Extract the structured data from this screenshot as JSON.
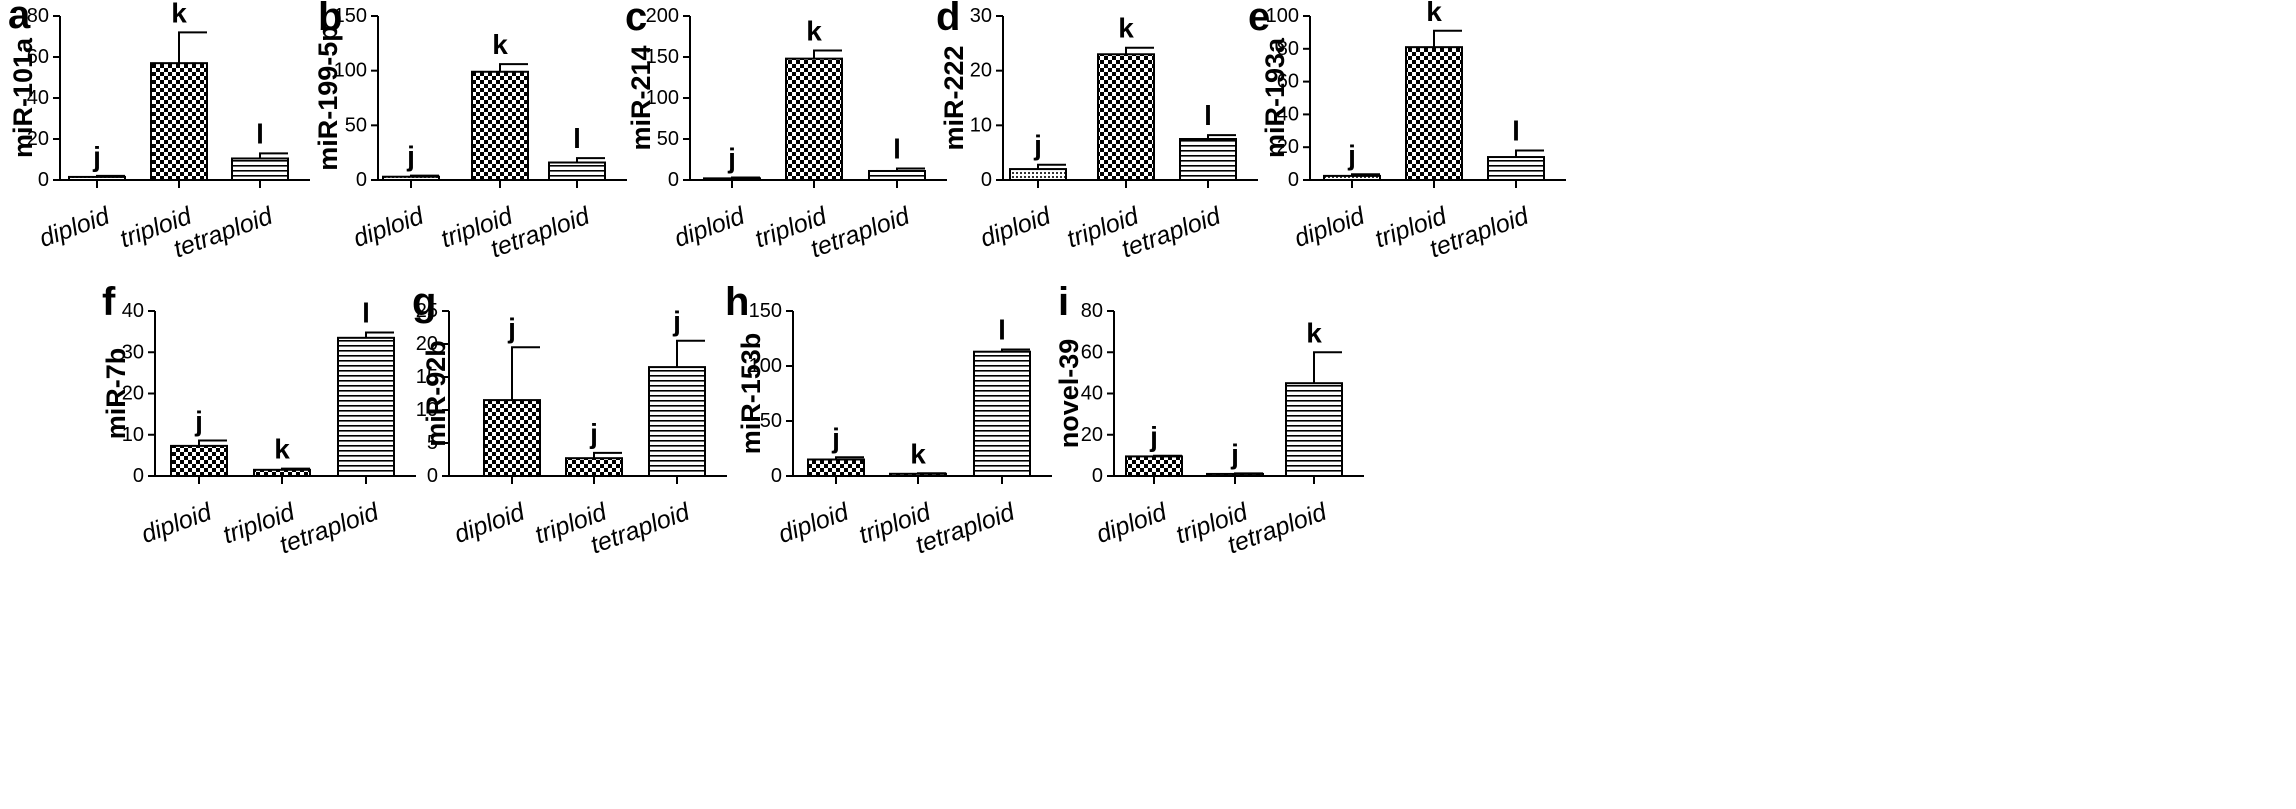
{
  "chart_data": [
    {
      "panel": "a",
      "type": "bar",
      "ylabel": "miR-101a",
      "ylim": [
        0,
        80
      ],
      "yticks": [
        0,
        20,
        40,
        60,
        80
      ],
      "categories": [
        "diploid",
        "triploid",
        "tetraploid"
      ],
      "values": [
        1.5,
        57,
        10.5
      ],
      "errors": [
        0.5,
        15,
        2.5
      ],
      "labels": [
        "j",
        "k",
        "l"
      ],
      "patterns": [
        "dots",
        "checker",
        "hlines"
      ]
    },
    {
      "panel": "b",
      "type": "bar",
      "ylabel": "miR-199-5p",
      "ylim": [
        0,
        150
      ],
      "yticks": [
        0,
        50,
        100,
        150
      ],
      "categories": [
        "diploid",
        "triploid",
        "tetraploid"
      ],
      "values": [
        3,
        99,
        16
      ],
      "errors": [
        1,
        7,
        4
      ],
      "labels": [
        "j",
        "k",
        "l"
      ],
      "patterns": [
        "dots",
        "checker",
        "hlines"
      ]
    },
    {
      "panel": "c",
      "type": "bar",
      "ylabel": "miR-214",
      "ylim": [
        0,
        200
      ],
      "yticks": [
        0,
        50,
        100,
        150,
        200
      ],
      "categories": [
        "diploid",
        "triploid",
        "tetraploid"
      ],
      "values": [
        2,
        148,
        11
      ],
      "errors": [
        1,
        10,
        3
      ],
      "labels": [
        "j",
        "k",
        "l"
      ],
      "patterns": [
        "dots",
        "checker",
        "hlines"
      ]
    },
    {
      "panel": "d",
      "type": "bar",
      "ylabel": "miR-222",
      "ylim": [
        0,
        30
      ],
      "yticks": [
        0,
        10,
        20,
        30
      ],
      "categories": [
        "diploid",
        "triploid",
        "tetraploid"
      ],
      "values": [
        2,
        23,
        7.5
      ],
      "errors": [
        0.8,
        1.2,
        0.7
      ],
      "labels": [
        "j",
        "k",
        "l"
      ],
      "patterns": [
        "dots",
        "checker",
        "hlines"
      ]
    },
    {
      "panel": "e",
      "type": "bar",
      "ylabel": "miR-193a",
      "ylim": [
        0,
        100
      ],
      "yticks": [
        0,
        20,
        40,
        60,
        80,
        100
      ],
      "categories": [
        "diploid",
        "triploid",
        "tetraploid"
      ],
      "values": [
        2.5,
        81,
        14
      ],
      "errors": [
        1,
        10,
        4
      ],
      "labels": [
        "j",
        "k",
        "l"
      ],
      "patterns": [
        "dots",
        "checker",
        "hlines"
      ]
    },
    {
      "panel": "f",
      "type": "bar",
      "ylabel": "miR-7b",
      "ylim": [
        0,
        40
      ],
      "yticks": [
        0,
        10,
        20,
        30,
        40
      ],
      "categories": [
        "diploid",
        "triploid",
        "tetraploid"
      ],
      "values": [
        7.3,
        1.5,
        33.5
      ],
      "errors": [
        1.3,
        0.3,
        1.3
      ],
      "labels": [
        "j",
        "k",
        "l"
      ],
      "patterns": [
        "checker",
        "checker",
        "hlines"
      ]
    },
    {
      "panel": "g",
      "type": "bar",
      "ylabel": "miR-92b",
      "ylim": [
        0,
        25
      ],
      "yticks": [
        0,
        5,
        10,
        15,
        20,
        25
      ],
      "categories": [
        "diploid",
        "triploid",
        "tetraploid"
      ],
      "values": [
        11.5,
        2.7,
        16.5
      ],
      "errors": [
        8,
        0.8,
        4
      ],
      "labels": [
        "j",
        "j",
        "j"
      ],
      "patterns": [
        "checker",
        "checker",
        "hlines"
      ]
    },
    {
      "panel": "h",
      "type": "bar",
      "ylabel": "miR-153b",
      "ylim": [
        0,
        150
      ],
      "yticks": [
        0,
        50,
        100,
        150
      ],
      "categories": [
        "diploid",
        "triploid",
        "tetraploid"
      ],
      "values": [
        15,
        2,
        113
      ],
      "errors": [
        2,
        0.5,
        2
      ],
      "labels": [
        "j",
        "k",
        "l"
      ],
      "patterns": [
        "checker",
        "checker",
        "hlines"
      ]
    },
    {
      "panel": "i",
      "type": "bar",
      "ylabel": "novel-39",
      "ylim": [
        0,
        80
      ],
      "yticks": [
        0,
        20,
        40,
        60,
        80
      ],
      "categories": [
        "diploid",
        "triploid",
        "tetraploid"
      ],
      "values": [
        9.5,
        1,
        45
      ],
      "errors": [
        0.3,
        0.3,
        15
      ],
      "labels": [
        "j",
        "j",
        "k"
      ],
      "patterns": [
        "checker",
        "checker",
        "hlines"
      ]
    }
  ]
}
